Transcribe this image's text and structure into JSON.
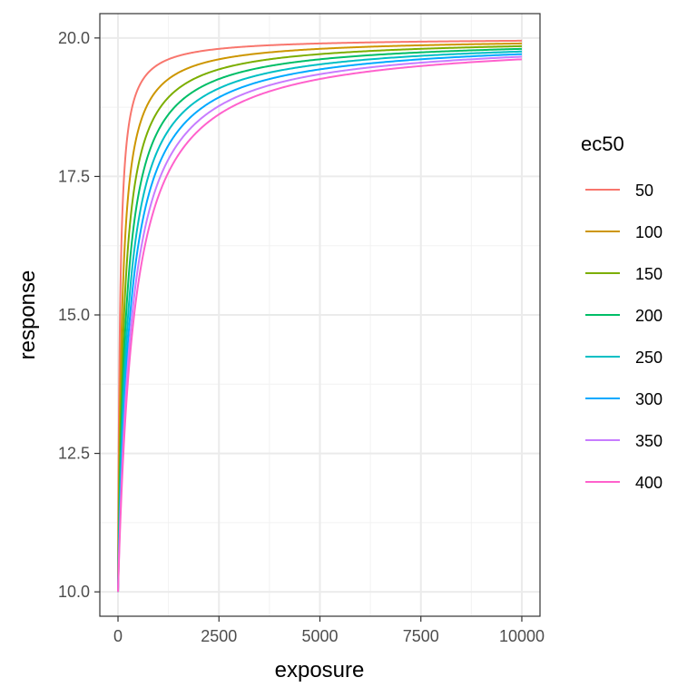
{
  "chart_data": {
    "type": "line",
    "xlabel": "exposure",
    "ylabel": "response",
    "xlim": [
      -450,
      10450
    ],
    "ylim": [
      9.56,
      20.44
    ],
    "x_ticks": [
      0,
      2500,
      5000,
      7500,
      10000
    ],
    "x_tick_labels": [
      "0",
      "2500",
      "5000",
      "7500",
      "10000"
    ],
    "y_ticks": [
      10.0,
      12.5,
      15.0,
      17.5,
      20.0
    ],
    "y_tick_labels": [
      "10.0",
      "12.5",
      "15.0",
      "17.5",
      "20.0"
    ],
    "grid": true,
    "legend": {
      "title": "ec50",
      "position": "right"
    },
    "model": {
      "e0": 10,
      "emax": 10,
      "x_max": 10000
    },
    "series": [
      {
        "name": "50",
        "ec50": 50,
        "color": "#F8766D"
      },
      {
        "name": "100",
        "ec50": 100,
        "color": "#CD9600"
      },
      {
        "name": "150",
        "ec50": 150,
        "color": "#7CAE00"
      },
      {
        "name": "200",
        "ec50": 200,
        "color": "#00BE67"
      },
      {
        "name": "250",
        "ec50": 250,
        "color": "#00BFC4"
      },
      {
        "name": "300",
        "ec50": 300,
        "color": "#00A9FF"
      },
      {
        "name": "350",
        "ec50": 350,
        "color": "#C77CFF"
      },
      {
        "name": "400",
        "ec50": 400,
        "color": "#FF61CC"
      }
    ]
  }
}
